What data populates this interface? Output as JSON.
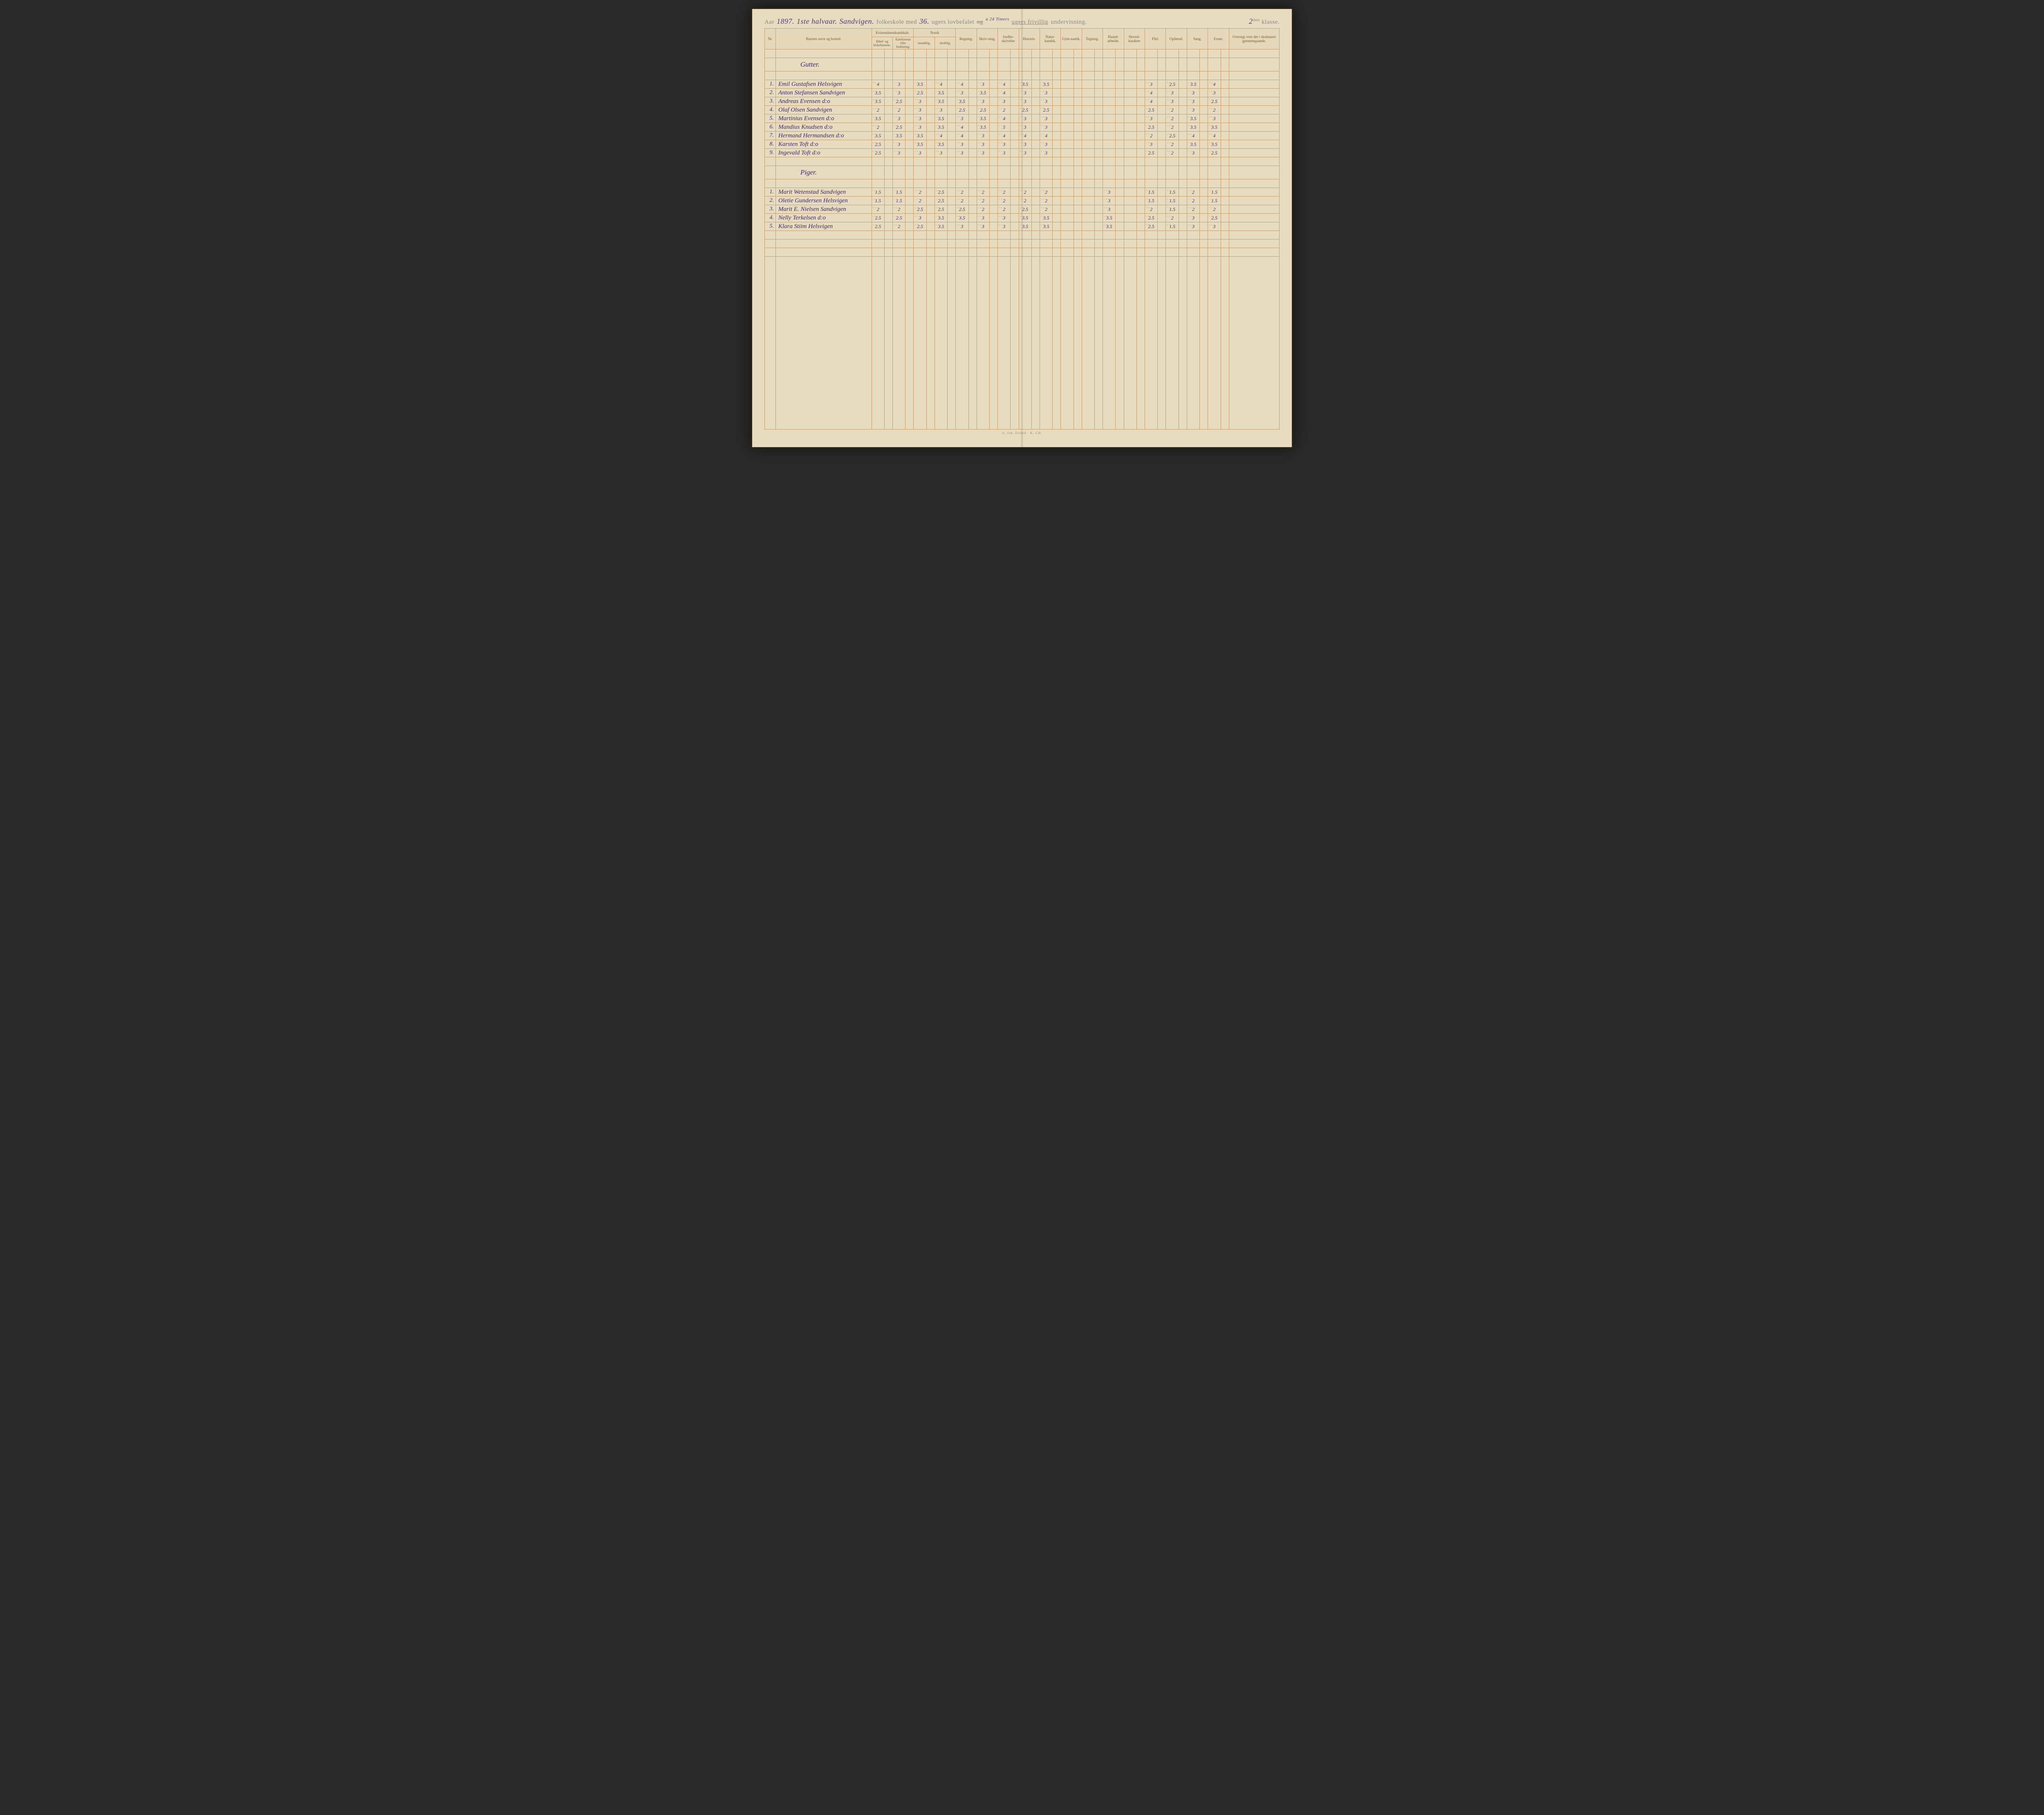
{
  "header": {
    "aar_label": "Aar",
    "year": "1897.",
    "half": "1ste halvaar.",
    "school": "Sandvigen.",
    "printed1": "folkeskole med",
    "weeks": "36.",
    "printed2": "ugers lovbefalet",
    "og_struck": "og",
    "a24": "a 24 Timers",
    "printed3": "ugers frivillig",
    "undervisning": "undervisning.",
    "klasse_num": "2",
    "klasse_sup": "den",
    "klasse": "klasse."
  },
  "columns": {
    "nr": "Nr.",
    "name": "Barnets navn og bosted.",
    "kristendom": "Kristendomskundskab.",
    "bibel": "Bibel- og kirkehistorie.",
    "katek": "Katekismus eller forklaring.",
    "norsk": "Norsk",
    "mundtlig": "mundtlig.",
    "skriftlig": "skriftlig.",
    "regning": "Regning.",
    "skrivning": "Skriv-ning.",
    "jordbeskrivelse": "Jordbe-skrivelse",
    "historie": "Historie.",
    "naturkundsk": "Natur-kundsk.",
    "gymnastik": "Gym-nastik.",
    "tegning": "Tegning.",
    "haandarbeide": "Haand-arbeide.",
    "hovedkarakter": "Hoved-karakter",
    "flid": "Flid.",
    "opforsel": "Opførsel.",
    "sang": "Sang.",
    "evner": "Evner.",
    "oversigt": "Oversigt over det i skoleaaret gjennemgaaede."
  },
  "sections": {
    "gutter": "Gutter.",
    "piger": "Piger."
  },
  "gutter": [
    {
      "nr": "1.",
      "name": "Emil Gustafsen Helsvigen",
      "g": [
        "4",
        "3",
        "3.5",
        "4",
        "4",
        "3",
        "4",
        "3.5",
        "3.5",
        "",
        "",
        "",
        "",
        "3",
        "2.5",
        "3.5",
        "4"
      ]
    },
    {
      "nr": "2.",
      "name": "Anton Stefansen Sandvigen",
      "g": [
        "3.5",
        "3",
        "2.5",
        "3.5",
        "3",
        "3.5",
        "4",
        "3",
        "3",
        "",
        "",
        "",
        "",
        "4",
        "3",
        "3",
        "3"
      ]
    },
    {
      "nr": "3.",
      "name": "Andreas Evensen  d:o",
      "g": [
        "3.5",
        "2.5",
        "3",
        "3.5",
        "3.5",
        "3",
        "3",
        "3",
        "3",
        "",
        "",
        "",
        "",
        "4",
        "3",
        "3",
        "2.5"
      ]
    },
    {
      "nr": "4.",
      "name": "Olaf Olsen Sandvigen",
      "g": [
        "2",
        "2",
        "3",
        "3",
        "2.5",
        "2.5",
        "2",
        "2.5",
        "2.5",
        "",
        "",
        "",
        "",
        "2.5",
        "2",
        "3",
        "2"
      ]
    },
    {
      "nr": "5.",
      "name": "Martinius Evensen d:o",
      "g": [
        "3.5",
        "3",
        "3",
        "3.5",
        "3",
        "3.5",
        "4",
        "3",
        "3",
        "",
        "",
        "",
        "",
        "3",
        "2",
        "3.5",
        "3"
      ]
    },
    {
      "nr": "6.",
      "name": "Mandius Knudsen d:o",
      "g": [
        "2",
        "2.5",
        "3",
        "3.5",
        "4",
        "3.5",
        "5",
        "3",
        "3",
        "",
        "",
        "",
        "",
        "2.5",
        "2",
        "3.5",
        "3.5"
      ]
    },
    {
      "nr": "7.",
      "name": "Hermand Hermandsen d:o",
      "g": [
        "3.5",
        "3.5",
        "3.5",
        "4",
        "4",
        "3",
        "4",
        "4",
        "4",
        "",
        "",
        "",
        "",
        "2",
        "2.5",
        "4",
        "4"
      ]
    },
    {
      "nr": "8.",
      "name": "Karsten Toft    d:o",
      "g": [
        "2.5",
        "3",
        "3.5",
        "3.5",
        "3",
        "3",
        "3",
        "3",
        "3",
        "",
        "",
        "",
        "",
        "3",
        "2",
        "3.5",
        "3.5"
      ]
    },
    {
      "nr": "9.",
      "name": "Ingevald Toft   d:o",
      "g": [
        "2.5",
        "3",
        "3",
        "3",
        "3",
        "3",
        "3",
        "3",
        "3",
        "",
        "",
        "",
        "",
        "2.5",
        "2",
        "3",
        "2.5"
      ]
    }
  ],
  "piger": [
    {
      "nr": "1.",
      "name": "Marit Wetenstad Sandvigen",
      "g": [
        "1.5",
        "1.5",
        "2",
        "2.5",
        "2",
        "2",
        "2",
        "2",
        "2",
        "",
        "",
        "3",
        "",
        "1.5",
        "1.5",
        "2",
        "1.5"
      ]
    },
    {
      "nr": "2.",
      "name": "Oletie Gundersen Helsvigen",
      "g": [
        "1.5",
        "1.5",
        "2",
        "2.5",
        "2",
        "2",
        "2",
        "2",
        "2",
        "",
        "",
        "3",
        "",
        "1.5",
        "1.5",
        "2",
        "1.5"
      ]
    },
    {
      "nr": "3.",
      "name": "Marit E. Nielsen Sandvigen",
      "g": [
        "2",
        "2",
        "2.5",
        "2.5",
        "2.5",
        "2",
        "2",
        "2.5",
        "2",
        "",
        "",
        "3",
        "",
        "2",
        "1.5",
        "2",
        "2"
      ]
    },
    {
      "nr": "4.",
      "name": "Nelly Terkelsen   d:o",
      "g": [
        "2.5",
        "2.5",
        "3",
        "3.5",
        "3.5",
        "3",
        "3",
        "3.5",
        "3.5",
        "",
        "",
        "3.5",
        "",
        "2.5",
        "2",
        "3",
        "2.5"
      ]
    },
    {
      "nr": "5.",
      "name": "Klara Stiim Helsvigen",
      "g": [
        "2.5",
        "2",
        "2.5",
        "3.5",
        "3",
        "3",
        "3",
        "3.5",
        "3.5",
        "",
        "",
        "3.5",
        "",
        "2.5",
        "1.5",
        "3",
        "3"
      ]
    }
  ],
  "footer": "A. Joh. Frihed · K. CH."
}
